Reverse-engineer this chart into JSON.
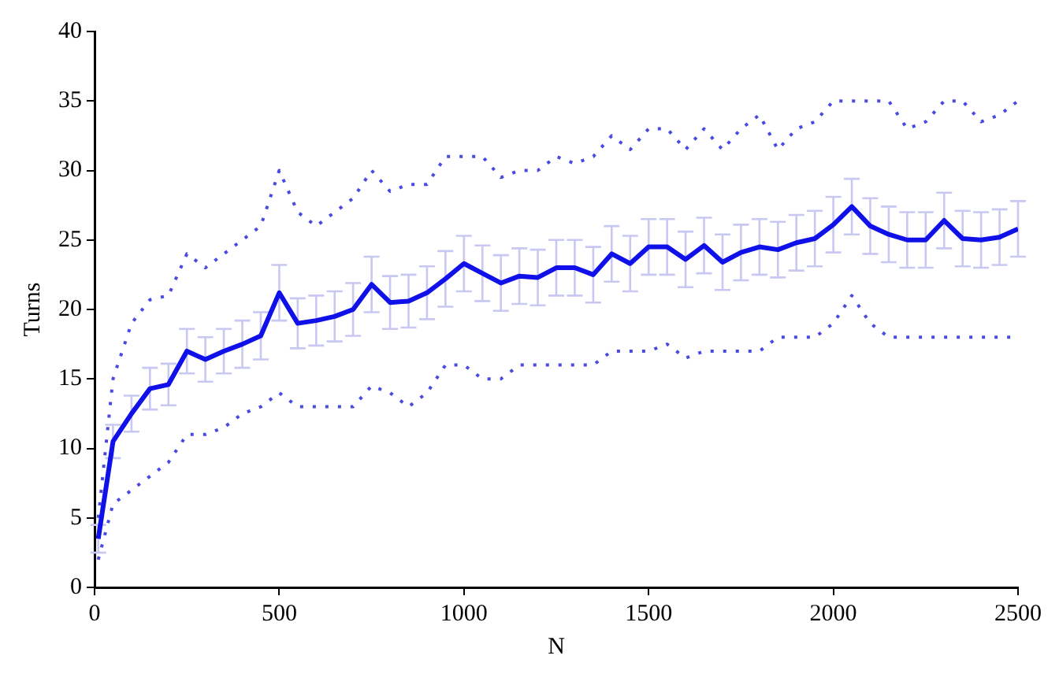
{
  "chart_data": {
    "type": "line",
    "xlabel": "N",
    "ylabel": "Turns",
    "x": [
      10,
      50,
      100,
      150,
      200,
      250,
      300,
      350,
      400,
      450,
      500,
      550,
      600,
      650,
      700,
      750,
      800,
      850,
      900,
      950,
      1000,
      1050,
      1100,
      1150,
      1200,
      1250,
      1300,
      1350,
      1400,
      1450,
      1500,
      1550,
      1600,
      1650,
      1700,
      1750,
      1800,
      1850,
      1900,
      1950,
      2000,
      2050,
      2100,
      2150,
      2200,
      2250,
      2300,
      2350,
      2400,
      2450,
      2500
    ],
    "series": [
      {
        "color": "#1010e8",
        "line_style": "solid",
        "values": [
          3.5,
          10.5,
          12.5,
          14.3,
          14.6,
          17,
          16.4,
          17,
          17.5,
          18.1,
          21.2,
          19,
          19.2,
          19.5,
          20,
          21.8,
          20.5,
          20.6,
          21.2,
          22.2,
          23.3,
          22.6,
          21.9,
          22.4,
          22.3,
          23,
          23,
          22.5,
          24,
          23.3,
          24.5,
          24.5,
          23.6,
          24.6,
          23.4,
          24.1,
          24.5,
          24.3,
          24.8,
          25.1,
          26.1,
          27.4,
          26,
          25.4,
          25,
          25,
          26.4,
          25.1,
          25,
          25.2,
          25.8
        ],
        "errors": [
          1,
          1.2,
          1.3,
          1.5,
          1.5,
          1.6,
          1.6,
          1.6,
          1.7,
          1.7,
          2,
          1.8,
          1.8,
          1.8,
          1.9,
          2,
          1.9,
          1.9,
          1.9,
          2,
          2,
          2,
          2,
          2,
          2,
          2,
          2,
          2,
          2,
          2,
          2,
          2,
          2,
          2,
          2,
          2,
          2,
          2,
          2,
          2,
          2,
          2,
          2,
          2,
          2,
          2,
          2,
          2,
          2,
          2,
          2
        ]
      },
      {
        "color": "#4a4ae0",
        "line_style": "dotted",
        "values": [
          5,
          15,
          19,
          20.7,
          21,
          24,
          23,
          24,
          25,
          26,
          30,
          27,
          26,
          27,
          28,
          30,
          28.5,
          29,
          29,
          31,
          31,
          31,
          29.5,
          30,
          30,
          31,
          30.5,
          31,
          32.5,
          31.5,
          33,
          33,
          31.5,
          33,
          31.5,
          33,
          34,
          31.5,
          33,
          33.5,
          35,
          35,
          35,
          35,
          33,
          33.5,
          35,
          35,
          33.5,
          34,
          35
        ]
      },
      {
        "color": "#4a4ae0",
        "line_style": "dotted",
        "values": [
          2,
          6,
          7,
          8,
          9,
          11,
          11,
          11.5,
          12.5,
          13,
          14,
          13,
          13,
          13,
          13,
          14.5,
          14,
          13,
          14,
          16,
          16,
          15,
          15,
          16,
          16,
          16,
          16,
          16,
          17,
          17,
          17,
          17.5,
          16.5,
          17,
          17,
          17,
          17,
          18,
          18,
          18,
          19,
          21,
          19,
          18,
          18,
          18,
          18,
          18,
          18,
          18,
          18
        ]
      }
    ],
    "xlim": [
      0,
      2500
    ],
    "xticks": [
      0,
      500,
      1000,
      1500,
      2000,
      2500
    ],
    "ylim": [
      0,
      40
    ],
    "yticks": [
      0,
      5,
      10,
      15,
      20,
      25,
      30,
      35,
      40
    ],
    "legend": false
  }
}
